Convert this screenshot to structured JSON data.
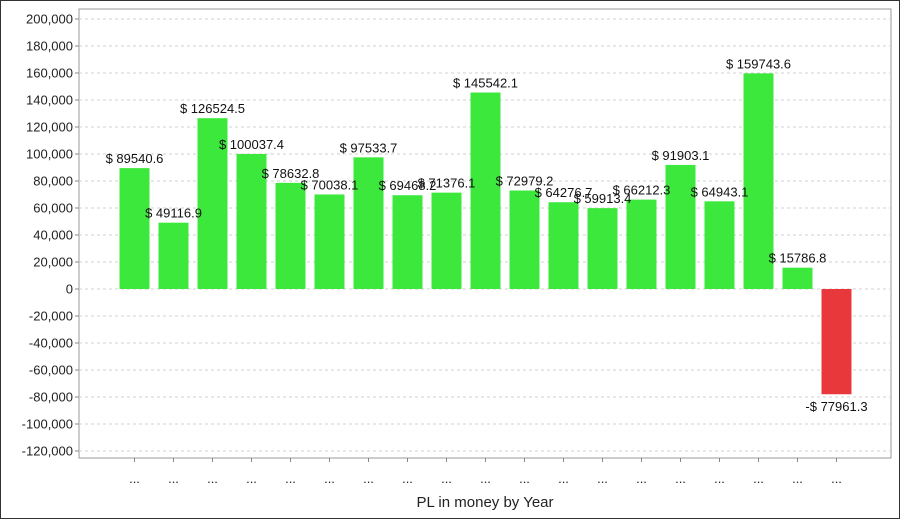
{
  "chart_data": {
    "type": "bar",
    "title": "",
    "xlabel": "PL in money by Year",
    "ylabel": "",
    "ylim": [
      -120000,
      200000
    ],
    "y_ticks": [
      200000,
      180000,
      160000,
      140000,
      120000,
      100000,
      80000,
      60000,
      40000,
      20000,
      0,
      -20000,
      -40000,
      -60000,
      -80000,
      -100000,
      -120000
    ],
    "y_tick_labels": [
      "200,000",
      "180,000",
      "160,000",
      "140,000",
      "120,000",
      "100,000",
      "80,000",
      "60,000",
      "40,000",
      "20,000",
      "0",
      "-20,000",
      "-40,000",
      "-60,000",
      "-80,000",
      "-100,000",
      "-120,000"
    ],
    "grid": true,
    "categories": [
      "...",
      "...",
      "...",
      "...",
      "...",
      "...",
      "...",
      "...",
      "...",
      "...",
      "...",
      "...",
      "...",
      "...",
      "...",
      "...",
      "...",
      "...",
      "..."
    ],
    "values": [
      89540.6,
      49116.9,
      126524.5,
      100037.4,
      78632.8,
      70038.1,
      97533.7,
      69468.2,
      71376.1,
      145542.1,
      72979.2,
      64276.7,
      59913.4,
      66212.3,
      91903.1,
      64943.1,
      159743.6,
      15786.8,
      -77961.3
    ],
    "data_labels": [
      "$ 89540.6",
      "$ 49116.9",
      "$ 126524.5",
      "$ 100037.4",
      "$ 78632.8",
      "$ 70038.1",
      "$ 97533.7",
      "$ 69468.2",
      "$ 71376.1",
      "$ 145542.1",
      "$ 72979.2",
      "$ 64276.7",
      "$ 59913.4",
      "$ 66212.3",
      "$ 91903.1",
      "$ 64943.1",
      "$ 159743.6",
      "$ 15786.8",
      "-$ 77961.3"
    ],
    "colors": {
      "positive": "#3de83d",
      "negative": "#e8383c",
      "grid": "#d0d0d0",
      "axis": "#888888"
    }
  }
}
